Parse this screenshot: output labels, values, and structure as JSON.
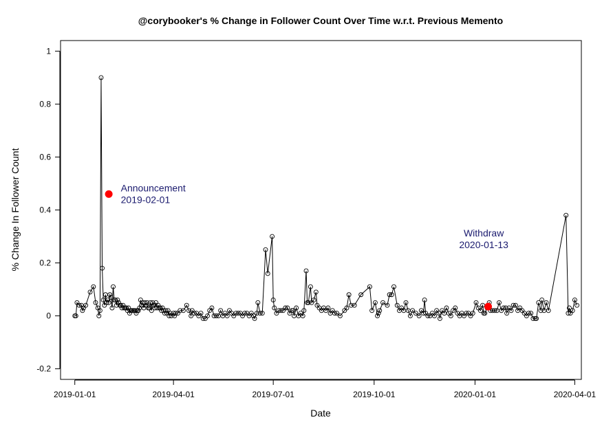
{
  "chart_data": {
    "type": "line",
    "title": "@corybooker's % Change in Follower Count Over Time w.r.t. Previous Memento",
    "xlabel": "Date",
    "ylabel": "% Change In Follower Count",
    "x_ticks": [
      "2019-01-01",
      "2019-04-01",
      "2019-07-01",
      "2019-10-01",
      "2020-01-01",
      "2020-04-01"
    ],
    "y_ticks": [
      "-0.2",
      "0",
      "0.2",
      "0.4",
      "0.6",
      "0.8",
      "1"
    ],
    "xlim": [
      "2018-12-19",
      "2020-04-07"
    ],
    "ylim": [
      -0.24,
      1.04
    ],
    "grid": false,
    "series": [
      {
        "marker": "open-circle",
        "line_color": "#000000",
        "points": [
          [
            "2019-01-01",
            0.0
          ],
          [
            "2019-01-02",
            0.0
          ],
          [
            "2019-01-03",
            0.05
          ],
          [
            "2019-01-05",
            0.04
          ],
          [
            "2019-01-07",
            0.04
          ],
          [
            "2019-01-08",
            0.02
          ],
          [
            "2019-01-09",
            0.03
          ],
          [
            "2019-01-11",
            0.04
          ],
          [
            "2019-01-15",
            0.09
          ],
          [
            "2019-01-18",
            0.11
          ],
          [
            "2019-01-20",
            0.05
          ],
          [
            "2019-01-22",
            0.03
          ],
          [
            "2019-01-23",
            0.0
          ],
          [
            "2019-01-24",
            0.02
          ],
          [
            "2019-01-25",
            0.9
          ],
          [
            "2019-01-26",
            0.18
          ],
          [
            "2019-01-27",
            0.06
          ],
          [
            "2019-01-28",
            0.04
          ],
          [
            "2019-01-29",
            0.08
          ],
          [
            "2019-01-30",
            0.05
          ],
          [
            "2019-01-31",
            0.06
          ],
          [
            "2019-02-01",
            0.05
          ],
          [
            "2019-02-02",
            0.08
          ],
          [
            "2019-02-03",
            0.07
          ],
          [
            "2019-02-04",
            0.03
          ],
          [
            "2019-02-05",
            0.11
          ],
          [
            "2019-02-06",
            0.06
          ],
          [
            "2019-02-07",
            0.06
          ],
          [
            "2019-02-08",
            0.04
          ],
          [
            "2019-02-09",
            0.06
          ],
          [
            "2019-02-10",
            0.05
          ],
          [
            "2019-02-11",
            0.04
          ],
          [
            "2019-02-12",
            0.04
          ],
          [
            "2019-02-13",
            0.03
          ],
          [
            "2019-02-14",
            0.04
          ],
          [
            "2019-02-15",
            0.03
          ],
          [
            "2019-02-16",
            0.03
          ],
          [
            "2019-02-17",
            0.03
          ],
          [
            "2019-02-18",
            0.02
          ],
          [
            "2019-02-19",
            0.03
          ],
          [
            "2019-02-20",
            0.01
          ],
          [
            "2019-02-21",
            0.02
          ],
          [
            "2019-02-22",
            0.02
          ],
          [
            "2019-02-23",
            0.02
          ],
          [
            "2019-02-24",
            0.02
          ],
          [
            "2019-02-25",
            0.02
          ],
          [
            "2019-02-26",
            0.01
          ],
          [
            "2019-02-27",
            0.02
          ],
          [
            "2019-02-28",
            0.02
          ],
          [
            "2019-03-01",
            0.03
          ],
          [
            "2019-03-02",
            0.06
          ],
          [
            "2019-03-03",
            0.04
          ],
          [
            "2019-03-04",
            0.05
          ],
          [
            "2019-03-05",
            0.03
          ],
          [
            "2019-03-06",
            0.05
          ],
          [
            "2019-03-07",
            0.04
          ],
          [
            "2019-03-08",
            0.05
          ],
          [
            "2019-03-09",
            0.03
          ],
          [
            "2019-03-10",
            0.03
          ],
          [
            "2019-03-11",
            0.05
          ],
          [
            "2019-03-12",
            0.02
          ],
          [
            "2019-03-13",
            0.05
          ],
          [
            "2019-03-14",
            0.04
          ],
          [
            "2019-03-15",
            0.03
          ],
          [
            "2019-03-16",
            0.05
          ],
          [
            "2019-03-17",
            0.03
          ],
          [
            "2019-03-18",
            0.04
          ],
          [
            "2019-03-19",
            0.03
          ],
          [
            "2019-03-20",
            0.03
          ],
          [
            "2019-03-21",
            0.02
          ],
          [
            "2019-03-22",
            0.03
          ],
          [
            "2019-03-23",
            0.02
          ],
          [
            "2019-03-24",
            0.01
          ],
          [
            "2019-03-25",
            0.02
          ],
          [
            "2019-03-26",
            0.01
          ],
          [
            "2019-03-27",
            0.02
          ],
          [
            "2019-03-28",
            0.0
          ],
          [
            "2019-03-29",
            0.01
          ],
          [
            "2019-03-30",
            0.0
          ],
          [
            "2019-04-01",
            0.01
          ],
          [
            "2019-04-02",
            0.0
          ],
          [
            "2019-04-03",
            0.01
          ],
          [
            "2019-04-05",
            0.01
          ],
          [
            "2019-04-07",
            0.02
          ],
          [
            "2019-04-10",
            0.02
          ],
          [
            "2019-04-13",
            0.04
          ],
          [
            "2019-04-15",
            0.02
          ],
          [
            "2019-04-17",
            0.0
          ],
          [
            "2019-04-18",
            0.02
          ],
          [
            "2019-04-20",
            0.01
          ],
          [
            "2019-04-22",
            0.01
          ],
          [
            "2019-04-24",
            0.0
          ],
          [
            "2019-04-26",
            0.01
          ],
          [
            "2019-04-28",
            -0.01
          ],
          [
            "2019-04-30",
            -0.01
          ],
          [
            "2019-05-02",
            0.0
          ],
          [
            "2019-05-04",
            0.02
          ],
          [
            "2019-05-06",
            0.03
          ],
          [
            "2019-05-08",
            0.0
          ],
          [
            "2019-05-10",
            0.0
          ],
          [
            "2019-05-12",
            0.0
          ],
          [
            "2019-05-14",
            0.02
          ],
          [
            "2019-05-16",
            0.0
          ],
          [
            "2019-05-18",
            0.01
          ],
          [
            "2019-05-20",
            0.0
          ],
          [
            "2019-05-22",
            0.02
          ],
          [
            "2019-05-24",
            0.01
          ],
          [
            "2019-05-26",
            0.0
          ],
          [
            "2019-05-28",
            0.01
          ],
          [
            "2019-05-30",
            0.01
          ],
          [
            "2019-06-01",
            0.01
          ],
          [
            "2019-06-03",
            0.0
          ],
          [
            "2019-06-05",
            0.01
          ],
          [
            "2019-06-07",
            0.01
          ],
          [
            "2019-06-09",
            0.0
          ],
          [
            "2019-06-11",
            0.01
          ],
          [
            "2019-06-13",
            0.0
          ],
          [
            "2019-06-14",
            -0.01
          ],
          [
            "2019-06-16",
            0.01
          ],
          [
            "2019-06-17",
            0.05
          ],
          [
            "2019-06-19",
            0.01
          ],
          [
            "2019-06-21",
            0.01
          ],
          [
            "2019-06-24",
            0.25
          ],
          [
            "2019-06-26",
            0.16
          ],
          [
            "2019-06-30",
            0.3
          ],
          [
            "2019-07-01",
            0.06
          ],
          [
            "2019-07-02",
            0.03
          ],
          [
            "2019-07-04",
            0.01
          ],
          [
            "2019-07-06",
            0.02
          ],
          [
            "2019-07-08",
            0.02
          ],
          [
            "2019-07-10",
            0.02
          ],
          [
            "2019-07-12",
            0.03
          ],
          [
            "2019-07-14",
            0.03
          ],
          [
            "2019-07-16",
            0.01
          ],
          [
            "2019-07-18",
            0.02
          ],
          [
            "2019-07-19",
            0.02
          ],
          [
            "2019-07-20",
            0.0
          ],
          [
            "2019-07-22",
            0.03
          ],
          [
            "2019-07-24",
            0.0
          ],
          [
            "2019-07-26",
            0.01
          ],
          [
            "2019-07-28",
            0.0
          ],
          [
            "2019-07-29",
            0.02
          ],
          [
            "2019-07-31",
            0.17
          ],
          [
            "2019-08-01",
            0.05
          ],
          [
            "2019-08-02",
            0.05
          ],
          [
            "2019-08-04",
            0.11
          ],
          [
            "2019-08-05",
            0.05
          ],
          [
            "2019-08-07",
            0.06
          ],
          [
            "2019-08-09",
            0.09
          ],
          [
            "2019-08-10",
            0.04
          ],
          [
            "2019-08-12",
            0.03
          ],
          [
            "2019-08-14",
            0.02
          ],
          [
            "2019-08-16",
            0.03
          ],
          [
            "2019-08-18",
            0.02
          ],
          [
            "2019-08-20",
            0.03
          ],
          [
            "2019-08-22",
            0.01
          ],
          [
            "2019-08-24",
            0.02
          ],
          [
            "2019-08-26",
            0.01
          ],
          [
            "2019-08-28",
            0.01
          ],
          [
            "2019-08-31",
            0.0
          ],
          [
            "2019-09-04",
            0.02
          ],
          [
            "2019-09-06",
            0.03
          ],
          [
            "2019-09-08",
            0.08
          ],
          [
            "2019-09-10",
            0.04
          ],
          [
            "2019-09-13",
            0.04
          ],
          [
            "2019-09-19",
            0.08
          ],
          [
            "2019-09-27",
            0.11
          ],
          [
            "2019-09-29",
            0.02
          ],
          [
            "2019-10-02",
            0.05
          ],
          [
            "2019-10-04",
            0.0
          ],
          [
            "2019-10-05",
            0.01
          ],
          [
            "2019-10-06",
            0.02
          ],
          [
            "2019-10-09",
            0.05
          ],
          [
            "2019-10-13",
            0.04
          ],
          [
            "2019-10-15",
            0.08
          ],
          [
            "2019-10-17",
            0.08
          ],
          [
            "2019-10-19",
            0.11
          ],
          [
            "2019-10-22",
            0.04
          ],
          [
            "2019-10-24",
            0.02
          ],
          [
            "2019-10-26",
            0.03
          ],
          [
            "2019-10-28",
            0.02
          ],
          [
            "2019-10-30",
            0.05
          ],
          [
            "2019-11-01",
            0.02
          ],
          [
            "2019-11-03",
            0.0
          ],
          [
            "2019-11-05",
            0.02
          ],
          [
            "2019-11-08",
            0.01
          ],
          [
            "2019-11-11",
            0.0
          ],
          [
            "2019-11-13",
            0.02
          ],
          [
            "2019-11-15",
            0.01
          ],
          [
            "2019-11-16",
            0.06
          ],
          [
            "2019-11-17",
            0.01
          ],
          [
            "2019-11-19",
            0.0
          ],
          [
            "2019-11-21",
            0.0
          ],
          [
            "2019-11-23",
            0.01
          ],
          [
            "2019-11-25",
            0.0
          ],
          [
            "2019-11-27",
            0.02
          ],
          [
            "2019-11-29",
            0.01
          ],
          [
            "2019-11-30",
            -0.01
          ],
          [
            "2019-12-02",
            0.02
          ],
          [
            "2019-12-04",
            0.01
          ],
          [
            "2019-12-06",
            0.03
          ],
          [
            "2019-12-08",
            0.01
          ],
          [
            "2019-12-10",
            0.0
          ],
          [
            "2019-12-12",
            0.02
          ],
          [
            "2019-12-14",
            0.03
          ],
          [
            "2019-12-16",
            0.01
          ],
          [
            "2019-12-18",
            0.0
          ],
          [
            "2019-12-20",
            0.01
          ],
          [
            "2019-12-22",
            0.0
          ],
          [
            "2019-12-24",
            0.01
          ],
          [
            "2019-12-26",
            0.01
          ],
          [
            "2019-12-28",
            0.0
          ],
          [
            "2019-12-30",
            0.01
          ],
          [
            "2020-01-02",
            0.05
          ],
          [
            "2020-01-04",
            0.03
          ],
          [
            "2020-01-06",
            0.02
          ],
          [
            "2020-01-08",
            0.04
          ],
          [
            "2020-01-09",
            0.01
          ],
          [
            "2020-01-10",
            0.01
          ],
          [
            "2020-01-12",
            0.03
          ],
          [
            "2020-01-14",
            0.05
          ],
          [
            "2020-01-15",
            0.02
          ],
          [
            "2020-01-17",
            0.02
          ],
          [
            "2020-01-19",
            0.02
          ],
          [
            "2020-01-21",
            0.02
          ],
          [
            "2020-01-23",
            0.05
          ],
          [
            "2020-01-25",
            0.02
          ],
          [
            "2020-01-27",
            0.03
          ],
          [
            "2020-01-29",
            0.03
          ],
          [
            "2020-01-30",
            0.01
          ],
          [
            "2020-02-01",
            0.03
          ],
          [
            "2020-02-03",
            0.02
          ],
          [
            "2020-02-05",
            0.04
          ],
          [
            "2020-02-07",
            0.04
          ],
          [
            "2020-02-09",
            0.02
          ],
          [
            "2020-02-11",
            0.03
          ],
          [
            "2020-02-13",
            0.02
          ],
          [
            "2020-02-15",
            0.01
          ],
          [
            "2020-02-17",
            0.0
          ],
          [
            "2020-02-19",
            0.01
          ],
          [
            "2020-02-21",
            0.01
          ],
          [
            "2020-02-23",
            -0.01
          ],
          [
            "2020-02-25",
            -0.01
          ],
          [
            "2020-02-26",
            -0.01
          ],
          [
            "2020-02-28",
            0.05
          ],
          [
            "2020-03-01",
            0.02
          ],
          [
            "2020-03-02",
            0.06
          ],
          [
            "2020-03-04",
            0.02
          ],
          [
            "2020-03-06",
            0.05
          ],
          [
            "2020-03-08",
            0.02
          ],
          [
            "2020-03-24",
            0.38
          ],
          [
            "2020-03-26",
            0.01
          ],
          [
            "2020-03-27",
            0.03
          ],
          [
            "2020-03-28",
            0.01
          ],
          [
            "2020-03-30",
            0.02
          ],
          [
            "2020-04-01",
            0.06
          ],
          [
            "2020-04-03",
            0.04
          ]
        ]
      }
    ],
    "highlights": [
      {
        "x": "2019-02-01",
        "y": 0.46,
        "color": "#ff0000"
      },
      {
        "x": "2020-01-13",
        "y": 0.035,
        "color": "#ff0000"
      }
    ],
    "annotations": [
      {
        "lines": [
          "Announcement",
          "2019-02-01"
        ],
        "x": "2019-02-12",
        "y": 0.47,
        "align": "left",
        "color": "#1a1a6e"
      },
      {
        "lines": [
          "Withdraw",
          "2020-01-13"
        ],
        "x": "2020-01-09",
        "y": 0.3,
        "align": "center",
        "color": "#1a1a6e"
      }
    ]
  }
}
